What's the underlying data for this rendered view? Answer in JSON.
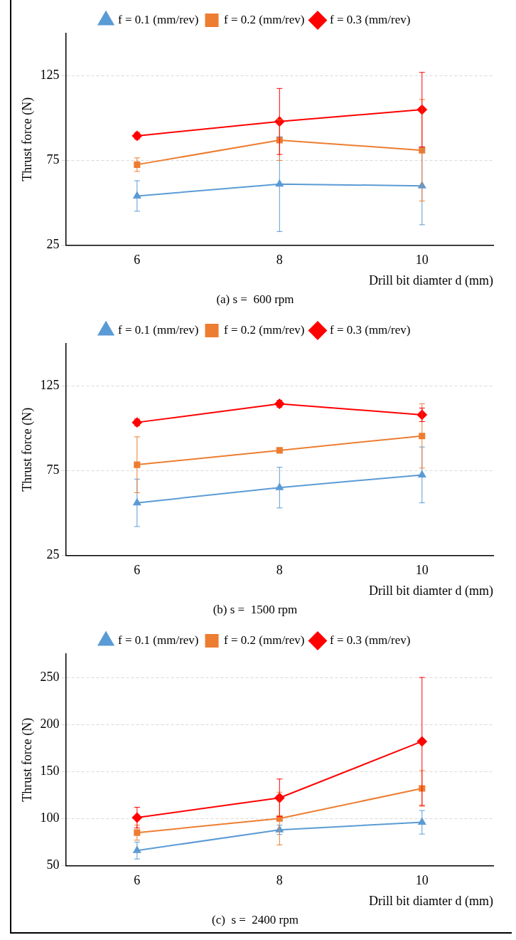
{
  "chart_data": [
    {
      "type": "line",
      "title": "(a) s =  600 rpm",
      "xlabel": "Drill bit diamter d (mm)",
      "ylabel": "Thrust force (N)",
      "x": [
        6,
        8,
        10
      ],
      "xlim": [
        5,
        11
      ],
      "xticks": [
        6,
        8,
        10
      ],
      "ylim": [
        25,
        150
      ],
      "yticks": [
        25,
        75,
        125
      ],
      "grid": "y",
      "legend": "top",
      "series": [
        {
          "name": "f = 0.1 (mm/rev)",
          "color": "#5b9bd5",
          "marker": "triangle",
          "values": [
            54,
            61,
            60
          ],
          "errors": [
            9,
            28,
            23
          ]
        },
        {
          "name": "f = 0.2 (mm/rev)",
          "color": "#ed7d31",
          "marker": "square",
          "values": [
            72.5,
            87,
            81
          ],
          "errors": [
            4,
            12,
            30
          ]
        },
        {
          "name": "f = 0.3 (mm/rev)",
          "color": "#ff0000",
          "marker": "diamond",
          "values": [
            89.5,
            98,
            105
          ],
          "errors": [
            2,
            19.5,
            22
          ]
        }
      ]
    },
    {
      "type": "line",
      "title": "(b) s =  1500 rpm",
      "xlabel": "Drill bit diamter d (mm)",
      "ylabel": "Thrust force (N)",
      "x": [
        6,
        8,
        10
      ],
      "xlim": [
        5,
        11
      ],
      "xticks": [
        6,
        8,
        10
      ],
      "ylim": [
        25,
        150
      ],
      "yticks": [
        25,
        75,
        125
      ],
      "grid": "y",
      "legend": "top",
      "series": [
        {
          "name": "f = 0.1 (mm/rev)",
          "color": "#5b9bd5",
          "marker": "triangle",
          "values": [
            56,
            65,
            72.5
          ],
          "errors": [
            14,
            12,
            16.5
          ]
        },
        {
          "name": "f = 0.2 (mm/rev)",
          "color": "#ed7d31",
          "marker": "square",
          "values": [
            78.5,
            87,
            95.5
          ],
          "errors": [
            16.5,
            1,
            19
          ]
        },
        {
          "name": "f = 0.3 (mm/rev)",
          "color": "#ff0000",
          "marker": "diamond",
          "values": [
            103.5,
            114.5,
            108
          ],
          "errors": [
            2,
            2,
            4
          ]
        }
      ]
    },
    {
      "type": "line",
      "title": "(c)  s =  2400 rpm",
      "xlabel": "Drill bit diamter d (mm)",
      "ylabel": "Thrust force (N)",
      "x": [
        6,
        8,
        10
      ],
      "xlim": [
        5,
        11
      ],
      "xticks": [
        6,
        8,
        10
      ],
      "ylim": [
        50,
        275
      ],
      "yticks": [
        50,
        100,
        150,
        200,
        250
      ],
      "grid": "y",
      "legend": "top",
      "series": [
        {
          "name": "f = 0.1 (mm/rev)",
          "color": "#5b9bd5",
          "marker": "triangle",
          "values": [
            66,
            88,
            96
          ],
          "errors": [
            9,
            5,
            12.5
          ]
        },
        {
          "name": "f = 0.2 (mm/rev)",
          "color": "#ed7d31",
          "marker": "square",
          "values": [
            85,
            100,
            132
          ],
          "errors": [
            8,
            28,
            19
          ]
        },
        {
          "name": "f = 0.3 (mm/rev)",
          "color": "#ff0000",
          "marker": "diamond",
          "values": [
            101,
            122,
            182
          ],
          "errors": [
            11,
            20,
            68
          ]
        }
      ]
    }
  ]
}
